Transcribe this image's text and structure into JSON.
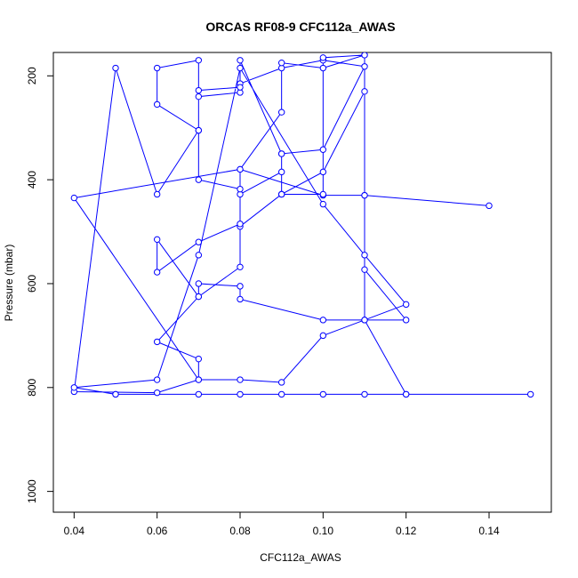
{
  "chart_data": {
    "type": "line",
    "title": "ORCAS RF08-9 CFC112a_AWAS",
    "xlabel": "CFC112a_AWAS",
    "ylabel": "Pressure (mbar)",
    "xlim": [
      0.035,
      0.155
    ],
    "ylim": [
      1040,
      155
    ],
    "y_reversed": true,
    "x_ticks": [
      0.04,
      0.06,
      0.08,
      0.1,
      0.12,
      0.14
    ],
    "x_tick_labels": [
      "0.04",
      "0.06",
      "0.08",
      "0.10",
      "0.12",
      "0.14"
    ],
    "y_ticks": [
      200,
      400,
      600,
      800,
      1000
    ],
    "y_tick_labels": [
      "200",
      "400",
      "600",
      "800",
      "1000"
    ],
    "grid": false,
    "marker": "open-circle",
    "color": "#0000ff",
    "series": [
      {
        "x": [
          0.05,
          0.08,
          0.09,
          0.1,
          0.11,
          0.12,
          0.15,
          0.12,
          0.11,
          0.11,
          0.14,
          0.11,
          0.1,
          0.08,
          0.04,
          0.07,
          0.07,
          0.06,
          0.07,
          0.08,
          0.08,
          0.09,
          0.09,
          0.1,
          0.11,
          0.1,
          0.09,
          0.08,
          0.08,
          0.07,
          0.07,
          0.06,
          0.06,
          0.07,
          0.07,
          0.08,
          0.08,
          0.09,
          0.09,
          0.1,
          0.11,
          0.11,
          0.1,
          0.09,
          0.09,
          0.08,
          0.08,
          0.07,
          0.06,
          0.06,
          0.07,
          0.07,
          0.08,
          0.08,
          0.1,
          0.11,
          0.12,
          0.11,
          0.11,
          0.1,
          0.1,
          0.09,
          0.09,
          0.08,
          0.08,
          0.07,
          0.07,
          0.06,
          0.05,
          0.04,
          0.06,
          0.07,
          0.08,
          0.09,
          0.1,
          0.12,
          0.11,
          0.1,
          0.08,
          0.07,
          0.06,
          0.04,
          0.05,
          0.07
        ],
        "y": [
          813,
          813,
          813,
          813,
          813,
          813,
          813,
          813,
          670,
          430,
          450,
          430,
          430,
          380,
          435,
          785,
          745,
          712,
          625,
          568,
          428,
          385,
          350,
          342,
          182,
          170,
          185,
          215,
          232,
          240,
          170,
          185,
          255,
          305,
          400,
          418,
          380,
          270,
          175,
          185,
          160,
          230,
          385,
          428,
          428,
          490,
          485,
          520,
          578,
          515,
          625,
          600,
          605,
          630,
          670,
          670,
          670,
          573,
          160,
          165,
          428,
          428,
          350,
          170,
          222,
          228,
          305,
          428,
          185,
          808,
          810,
          785,
          785,
          790,
          700,
          640,
          545,
          447,
          185,
          545,
          785,
          800,
          813,
          813
        ]
      }
    ]
  }
}
